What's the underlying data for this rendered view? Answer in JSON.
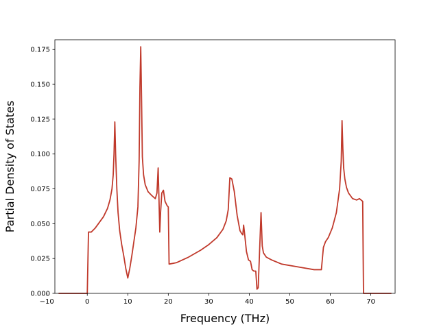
{
  "chart_data": {
    "type": "line",
    "title": "",
    "xlabel": "Frequency (THz)",
    "ylabel": "Partial Density of States",
    "xlim": [
      -8.0,
      76.0
    ],
    "ylim": [
      0.0,
      0.182
    ],
    "xticks": [
      -10,
      0,
      10,
      20,
      30,
      40,
      50,
      60,
      70
    ],
    "xtick_labels": [
      "−10",
      "0",
      "10",
      "20",
      "30",
      "40",
      "50",
      "60",
      "70"
    ],
    "yticks": [
      0.0,
      0.025,
      0.05,
      0.075,
      0.1,
      0.125,
      0.15,
      0.175
    ],
    "ytick_labels": [
      "0.000",
      "0.025",
      "0.050",
      "0.075",
      "0.100",
      "0.125",
      "0.150",
      "0.175"
    ],
    "grid": false,
    "legend": "none",
    "colors": {
      "line": "#c0392b",
      "axis": "#000000",
      "background": "#ffffff"
    },
    "series": [
      {
        "x": [
          -7,
          -0.4,
          0,
          0.3,
          1,
          2,
          3,
          4,
          5,
          5.6,
          6.1,
          6.4,
          6.6,
          6.8,
          7.0,
          7.3,
          7.6,
          8,
          8.5,
          9,
          9.5,
          10,
          10.5,
          11,
          11.5,
          12,
          12.5,
          12.8,
          13.0,
          13.2,
          13.4,
          13.6,
          13.9,
          14.3,
          15,
          16,
          16.8,
          17.2,
          17.5,
          17.7,
          17.9,
          18.1,
          18.4,
          18.8,
          19.2,
          19.7,
          20.0,
          20.2,
          22,
          25,
          28,
          30,
          32,
          33.5,
          34.3,
          34.8,
          35.2,
          35.7,
          36.3,
          37,
          37.7,
          38.1,
          38.4,
          38.6,
          38.8,
          39.3,
          39.8,
          40.3,
          40.7,
          41.1,
          41.6,
          41.9,
          42.2,
          42.5,
          42.9,
          43.2,
          43.5,
          44.2,
          45.5,
          48,
          52,
          56,
          57.8,
          58.3,
          58.8,
          59.5,
          60.5,
          61.5,
          62.3,
          62.7,
          62.9,
          63.1,
          63.3,
          63.6,
          64,
          64.5,
          65.5,
          66.5,
          67.2,
          67.6,
          68,
          68.2,
          68.5,
          68.9,
          69.5,
          75
        ],
        "y": [
          0.0,
          0.0,
          0.0,
          0.044,
          0.044,
          0.047,
          0.051,
          0.055,
          0.061,
          0.067,
          0.075,
          0.085,
          0.1,
          0.123,
          0.1,
          0.075,
          0.058,
          0.045,
          0.035,
          0.027,
          0.018,
          0.011,
          0.018,
          0.027,
          0.037,
          0.047,
          0.062,
          0.095,
          0.148,
          0.177,
          0.14,
          0.098,
          0.085,
          0.078,
          0.073,
          0.07,
          0.068,
          0.072,
          0.09,
          0.068,
          0.044,
          0.058,
          0.072,
          0.074,
          0.066,
          0.063,
          0.062,
          0.021,
          0.022,
          0.026,
          0.031,
          0.035,
          0.04,
          0.046,
          0.052,
          0.06,
          0.083,
          0.082,
          0.073,
          0.056,
          0.045,
          0.043,
          0.042,
          0.049,
          0.044,
          0.03,
          0.024,
          0.023,
          0.017,
          0.016,
          0.016,
          0.003,
          0.004,
          0.027,
          0.058,
          0.034,
          0.029,
          0.026,
          0.024,
          0.021,
          0.019,
          0.017,
          0.017,
          0.033,
          0.037,
          0.04,
          0.047,
          0.058,
          0.075,
          0.095,
          0.124,
          0.104,
          0.09,
          0.082,
          0.076,
          0.072,
          0.068,
          0.067,
          0.068,
          0.067,
          0.066,
          0.0,
          0.0,
          0.0,
          0.0,
          0.0
        ]
      }
    ]
  }
}
